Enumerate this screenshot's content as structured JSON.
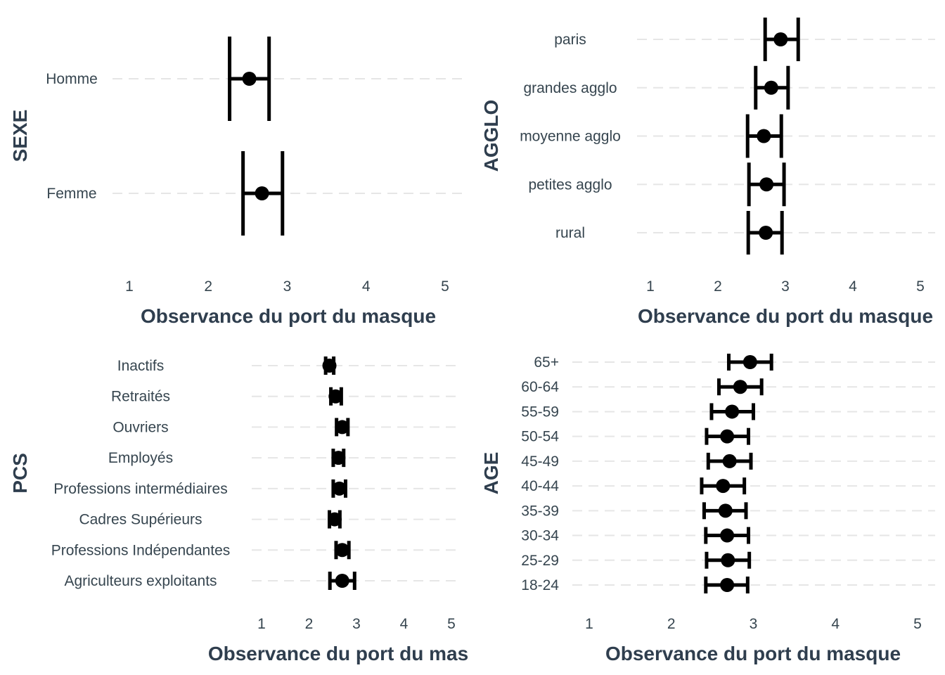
{
  "chart_data": [
    {
      "type": "errorbar",
      "ylabel": "SEXE",
      "xlabel": "Observance du port du masque",
      "xlim": [
        1,
        5
      ],
      "xticks": [
        "1",
        "2",
        "3",
        "4",
        "5"
      ],
      "categories": [
        "Homme",
        "Femme"
      ],
      "estimates": [
        2.52,
        2.68
      ],
      "lower": [
        2.27,
        2.44
      ],
      "upper": [
        2.77,
        2.94
      ],
      "grid": true
    },
    {
      "type": "errorbar",
      "ylabel": "AGGLO",
      "xlabel": "Observance du port du masque",
      "xlim": [
        1,
        5
      ],
      "xticks": [
        "1",
        "2",
        "3",
        "4",
        "5"
      ],
      "categories": [
        "paris",
        "grandes agglo",
        "moyenne agglo",
        "petites agglo",
        "rural"
      ],
      "estimates": [
        2.93,
        2.79,
        2.68,
        2.72,
        2.71
      ],
      "lower": [
        2.7,
        2.56,
        2.44,
        2.46,
        2.45
      ],
      "upper": [
        3.19,
        3.04,
        2.94,
        2.98,
        2.95
      ],
      "grid": true
    },
    {
      "type": "errorbar",
      "ylabel": "PCS",
      "xlabel": "Observance du port du mas",
      "xlim": [
        1,
        5
      ],
      "xticks": [
        "1",
        "2",
        "3",
        "4",
        "5"
      ],
      "categories": [
        "Inactifs",
        "Retraités",
        "Ouvriers",
        "Employés",
        "Professions intermédiaires",
        "Cadres Supérieurs",
        "Professions Indépendantes",
        "Agriculteurs exploitants"
      ],
      "estimates": [
        2.43,
        2.56,
        2.7,
        2.62,
        2.64,
        2.54,
        2.7,
        2.7
      ],
      "lower": [
        2.35,
        2.46,
        2.58,
        2.51,
        2.51,
        2.43,
        2.57,
        2.44
      ],
      "upper": [
        2.52,
        2.68,
        2.82,
        2.73,
        2.77,
        2.65,
        2.84,
        2.96
      ],
      "grid": true
    },
    {
      "type": "errorbar",
      "ylabel": "AGE",
      "xlabel": "Observance du port du masque",
      "xlim": [
        1,
        5
      ],
      "xticks": [
        "1",
        "2",
        "3",
        "4",
        "5"
      ],
      "categories": [
        "65+",
        "60-64",
        "55-59",
        "50-54",
        "45-49",
        "40-44",
        "35-39",
        "30-34",
        "25-29",
        "18-24"
      ],
      "estimates": [
        2.96,
        2.84,
        2.74,
        2.68,
        2.71,
        2.63,
        2.66,
        2.68,
        2.69,
        2.68
      ],
      "lower": [
        2.7,
        2.58,
        2.49,
        2.43,
        2.45,
        2.37,
        2.4,
        2.42,
        2.43,
        2.42
      ],
      "upper": [
        3.22,
        3.1,
        3.0,
        2.94,
        2.97,
        2.89,
        2.91,
        2.94,
        2.95,
        2.93
      ],
      "grid": true
    }
  ]
}
